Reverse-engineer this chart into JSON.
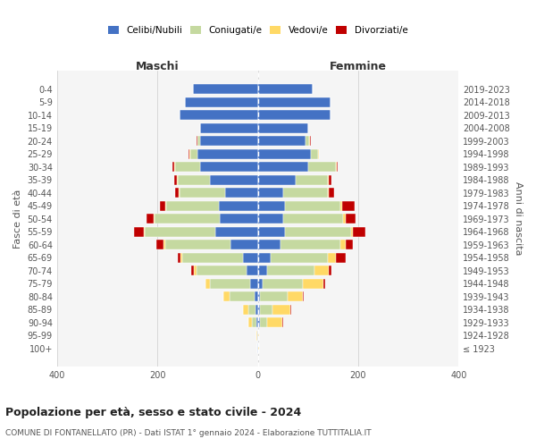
{
  "age_groups": [
    "100+",
    "95-99",
    "90-94",
    "85-89",
    "80-84",
    "75-79",
    "70-74",
    "65-69",
    "60-64",
    "55-59",
    "50-54",
    "45-49",
    "40-44",
    "35-39",
    "30-34",
    "25-29",
    "20-24",
    "15-19",
    "10-14",
    "5-9",
    "0-4"
  ],
  "birth_years": [
    "≤ 1923",
    "1924-1928",
    "1929-1933",
    "1934-1938",
    "1939-1943",
    "1944-1948",
    "1949-1953",
    "1954-1958",
    "1959-1963",
    "1964-1968",
    "1969-1973",
    "1974-1978",
    "1979-1983",
    "1984-1988",
    "1989-1993",
    "1994-1998",
    "1999-2003",
    "2004-2008",
    "2009-2013",
    "2014-2018",
    "2019-2023"
  ],
  "colors": {
    "celibi": "#4472C4",
    "coniugati": "#c5d9a0",
    "vedovi": "#FFD966",
    "divorziati": "#C00000"
  },
  "maschi": {
    "celibi": [
      1,
      1,
      3,
      4,
      7,
      15,
      22,
      30,
      55,
      85,
      75,
      78,
      65,
      95,
      115,
      120,
      115,
      115,
      155,
      145,
      130
    ],
    "coniugati": [
      0,
      0,
      8,
      14,
      50,
      80,
      100,
      120,
      130,
      140,
      130,
      105,
      90,
      65,
      50,
      15,
      5,
      0,
      0,
      0,
      0
    ],
    "vedovi": [
      0,
      1,
      8,
      12,
      12,
      10,
      5,
      4,
      2,
      2,
      2,
      2,
      2,
      2,
      2,
      2,
      1,
      0,
      0,
      0,
      0
    ],
    "divorziati": [
      0,
      0,
      0,
      0,
      0,
      0,
      5,
      5,
      15,
      20,
      15,
      10,
      8,
      5,
      3,
      1,
      1,
      0,
      0,
      0,
      0
    ]
  },
  "femmine": {
    "celibi": [
      1,
      1,
      4,
      5,
      5,
      10,
      18,
      25,
      45,
      55,
      50,
      55,
      50,
      75,
      100,
      105,
      95,
      100,
      145,
      145,
      110
    ],
    "coniugati": [
      0,
      0,
      15,
      25,
      55,
      80,
      95,
      115,
      120,
      130,
      120,
      110,
      90,
      65,
      55,
      15,
      8,
      0,
      0,
      0,
      0
    ],
    "vedovi": [
      1,
      2,
      30,
      35,
      30,
      40,
      28,
      15,
      10,
      5,
      5,
      3,
      2,
      2,
      2,
      1,
      1,
      0,
      0,
      0,
      0
    ],
    "divorziati": [
      0,
      0,
      2,
      2,
      2,
      5,
      5,
      20,
      15,
      25,
      20,
      25,
      10,
      5,
      3,
      1,
      1,
      0,
      0,
      0,
      0
    ]
  },
  "title": "Popolazione per età, sesso e stato civile - 2024",
  "subtitle": "COMUNE DI FONTANELLATO (PR) - Dati ISTAT 1° gennaio 2024 - Elaborazione TUTTITALIA.IT",
  "xlabel_left": "Maschi",
  "xlabel_right": "Femmine",
  "ylabel_left": "Fasce di età",
  "ylabel_right": "Anni di nascita",
  "xlim": 400,
  "legend_labels": [
    "Celibi/Nubili",
    "Coniugati/e",
    "Vedovi/e",
    "Divorziati/e"
  ]
}
